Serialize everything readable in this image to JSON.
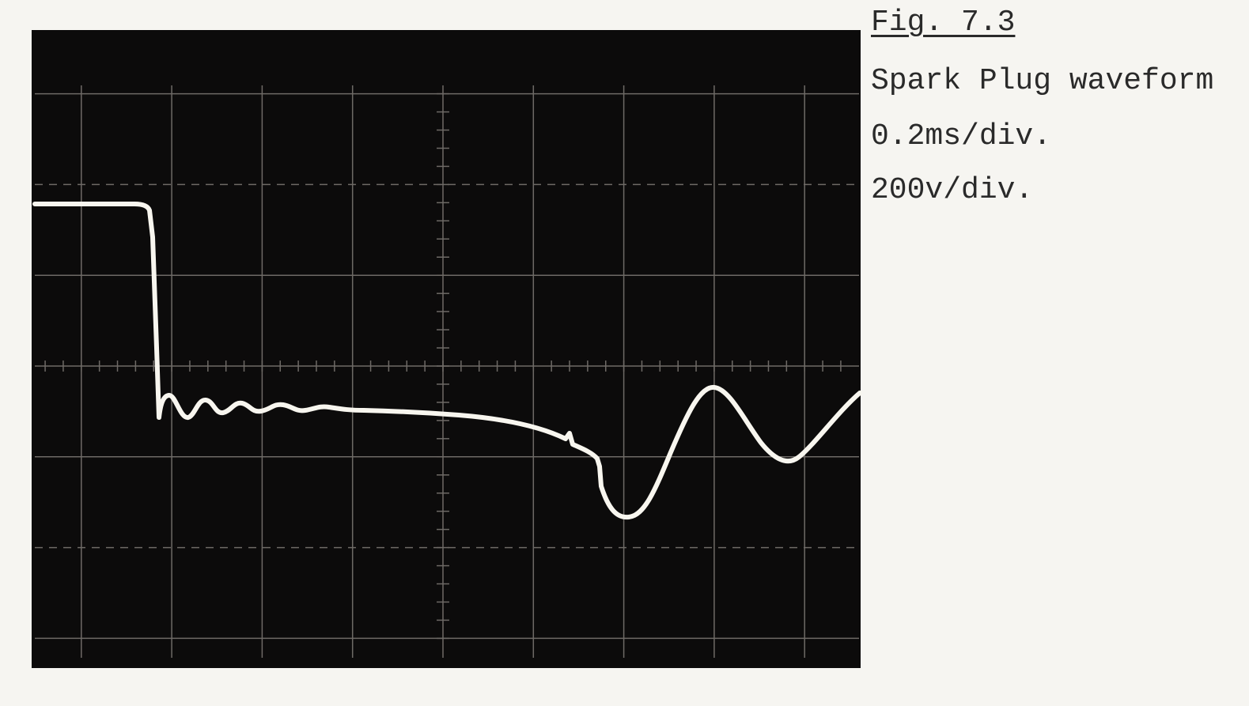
{
  "figure": {
    "label": "Fig. 7.3",
    "title": "Spark Plug waveform",
    "time_scale": "0.2ms/div.",
    "voltage_scale": "200v/div."
  }
}
